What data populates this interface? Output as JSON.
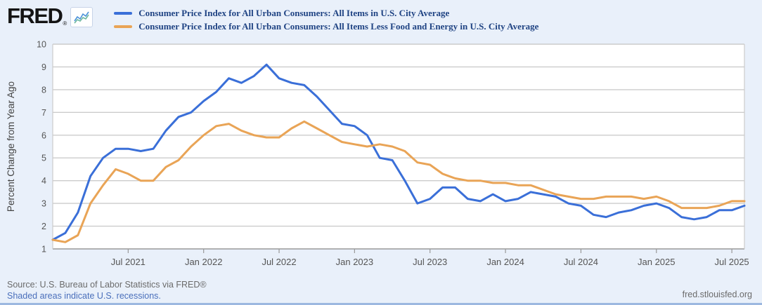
{
  "header": {
    "logo_text": "FRED",
    "logo_registered": "®",
    "legend": [
      {
        "label": "Consumer Price Index for All Urban Consumers: All Items in U.S. City Average",
        "color": "#3a6fd8"
      },
      {
        "label": "Consumer Price Index for All Urban Consumers: All Items Less Food and Energy in U.S. City Average",
        "color": "#e9a456"
      }
    ]
  },
  "footer": {
    "source_line": "Source: U.S. Bureau of Labor Statistics via FRED®",
    "recession_note": "Shaded areas indicate U.S. recessions.",
    "site": "fred.stlouisfed.org"
  },
  "chart_data": {
    "type": "line",
    "frequency": "monthly",
    "start": "2021-01",
    "end": "2025-08",
    "title": "",
    "xlabel": "",
    "ylabel": "Percent Change from Year Ago",
    "ylim": [
      1,
      10
    ],
    "yticks": [
      1,
      2,
      3,
      4,
      5,
      6,
      7,
      8,
      9,
      10
    ],
    "grid": "horizontal",
    "legend_position": "top-left",
    "xticks": [
      {
        "label": "Jul 2021",
        "month_index": 6
      },
      {
        "label": "Jan 2022",
        "month_index": 12
      },
      {
        "label": "Jul 2022",
        "month_index": 18
      },
      {
        "label": "Jan 2023",
        "month_index": 24
      },
      {
        "label": "Jul 2023",
        "month_index": 30
      },
      {
        "label": "Jan 2024",
        "month_index": 36
      },
      {
        "label": "Jul 2024",
        "month_index": 42
      },
      {
        "label": "Jan 2025",
        "month_index": 48
      },
      {
        "label": "Jul 2025",
        "month_index": 54
      }
    ],
    "series": [
      {
        "name": "Consumer Price Index for All Urban Consumers: All Items in U.S. City Average",
        "color": "#3a6fd8",
        "values": [
          1.4,
          1.7,
          2.6,
          4.2,
          5.0,
          5.4,
          5.4,
          5.3,
          5.4,
          6.2,
          6.8,
          7.0,
          7.5,
          7.9,
          8.5,
          8.3,
          8.6,
          9.1,
          8.5,
          8.3,
          8.2,
          7.7,
          7.1,
          6.5,
          6.4,
          6.0,
          5.0,
          4.9,
          4.0,
          3.0,
          3.2,
          3.7,
          3.7,
          3.2,
          3.1,
          3.4,
          3.1,
          3.2,
          3.5,
          3.4,
          3.3,
          3.0,
          2.9,
          2.5,
          2.4,
          2.6,
          2.7,
          2.9,
          3.0,
          2.8,
          2.4,
          2.3,
          2.4,
          2.7,
          2.7,
          2.9
        ]
      },
      {
        "name": "Consumer Price Index for All Urban Consumers: All Items Less Food and Energy in U.S. City Average",
        "color": "#e9a456",
        "values": [
          1.4,
          1.3,
          1.6,
          3.0,
          3.8,
          4.5,
          4.3,
          4.0,
          4.0,
          4.6,
          4.9,
          5.5,
          6.0,
          6.4,
          6.5,
          6.2,
          6.0,
          5.9,
          5.9,
          6.3,
          6.6,
          6.3,
          6.0,
          5.7,
          5.6,
          5.5,
          5.6,
          5.5,
          5.3,
          4.8,
          4.7,
          4.3,
          4.1,
          4.0,
          4.0,
          3.9,
          3.9,
          3.8,
          3.8,
          3.6,
          3.4,
          3.3,
          3.2,
          3.2,
          3.3,
          3.3,
          3.3,
          3.2,
          3.3,
          3.1,
          2.8,
          2.8,
          2.8,
          2.9,
          3.1,
          3.1
        ]
      }
    ],
    "colors": {
      "plot_background": "#ffffff",
      "page_background": "#e9f0fa",
      "gridline": "#cccccc",
      "axis_line": "#999999",
      "axis_text": "#555555",
      "ylabel_text": "#444444"
    }
  }
}
